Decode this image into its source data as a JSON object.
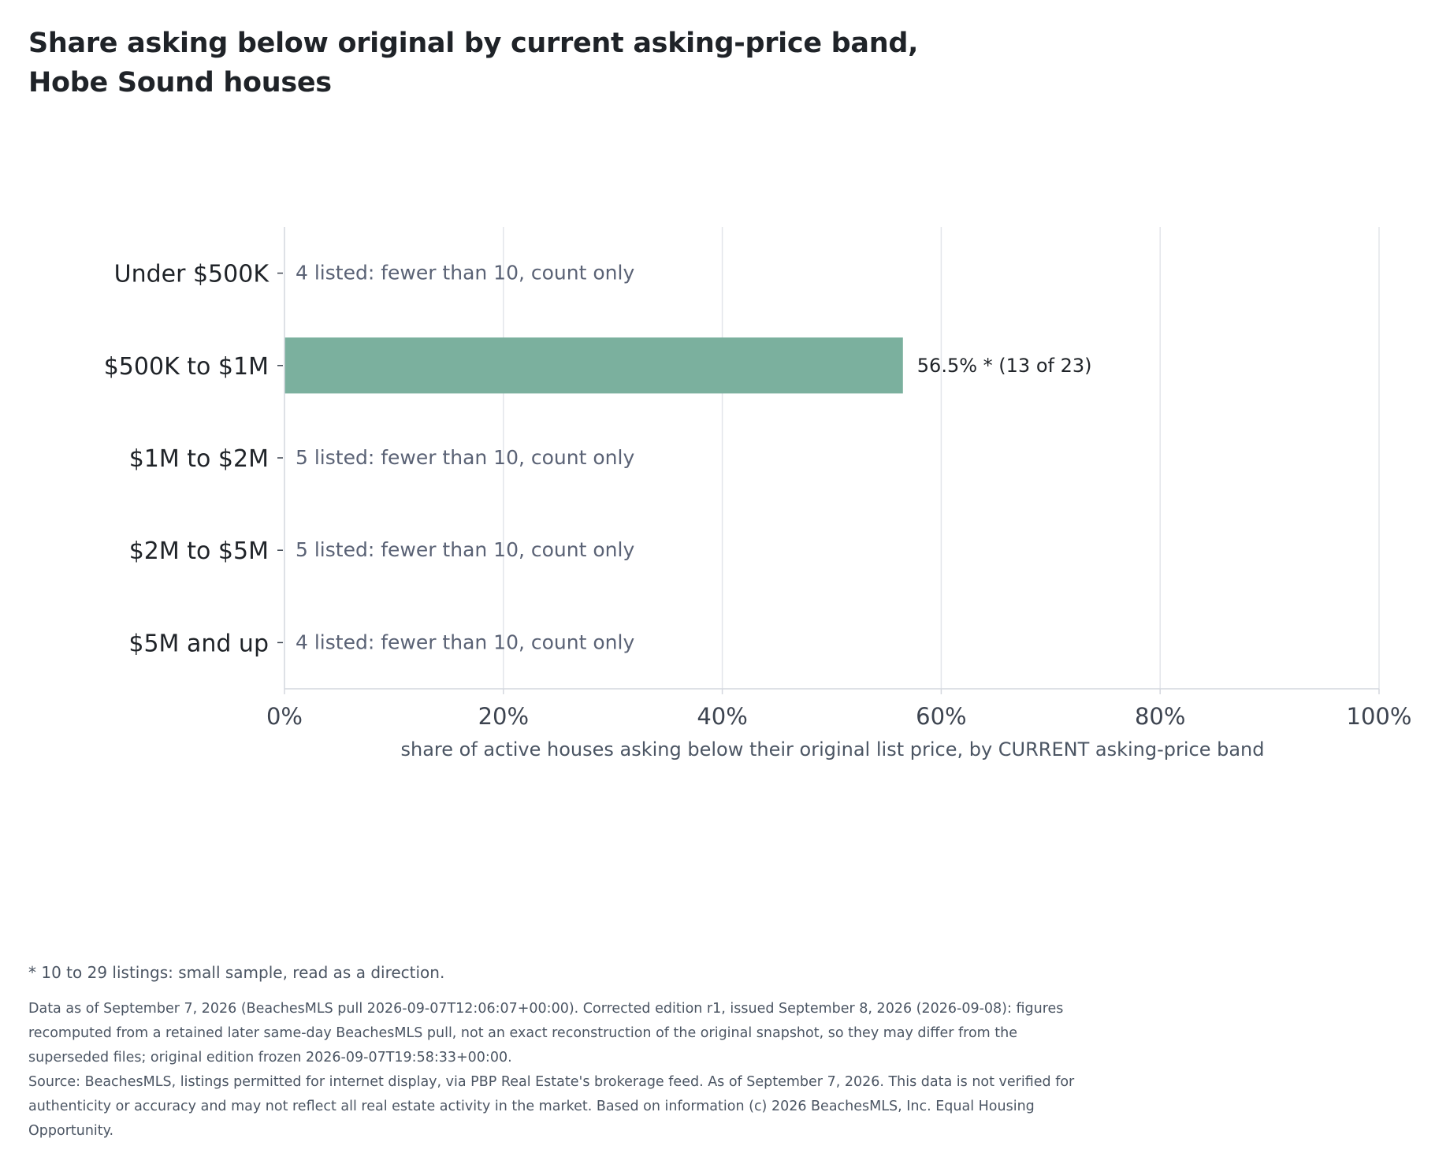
{
  "title": "Share asking below original by current asking-price band, Hobe Sound houses",
  "colors": {
    "bar": "#7bb09e",
    "gridline": "#e3e5ea",
    "axis": "#d4d7de",
    "band_label": "#1f2328",
    "note_text": "#5a6275",
    "value_label": "#1f2328"
  },
  "chart_data": {
    "type": "bar",
    "orientation": "horizontal",
    "categories": [
      "Under $500K",
      "$500K to $1M",
      "$1M to $2M",
      "$2M to $5M",
      "$5M and up"
    ],
    "values": [
      null,
      56.5,
      null,
      null,
      null
    ],
    "bar_labels": [
      "",
      "56.5% *  (13 of 23)",
      "",
      "",
      ""
    ],
    "notes": [
      "4 listed: fewer than 10, count only",
      "",
      "5 listed: fewer than 10, count only",
      "5 listed: fewer than 10, count only",
      "4 listed: fewer than 10, count only"
    ],
    "xlabel": "share of active houses asking below their original list price, by CURRENT asking-price band",
    "ylabel": "",
    "xlim": [
      0,
      100
    ],
    "xticks": [
      0,
      20,
      40,
      60,
      80,
      100
    ],
    "xtick_labels": [
      "0%",
      "20%",
      "40%",
      "60%",
      "80%",
      "100%"
    ],
    "grid": "vertical"
  },
  "footnote": "* 10 to 29 listings: small sample, read as a direction.",
  "data_note": "Data as of September 7, 2026 (BeachesMLS pull 2026-09-07T12:06:07+00:00). Corrected edition r1, issued September 8, 2026 (2026-09-08): figures recomputed from a retained later same-day BeachesMLS pull, not an exact reconstruction of the original snapshot, so they may differ from the superseded files; original edition frozen 2026-09-07T19:58:33+00:00.",
  "source": "Source: BeachesMLS, listings permitted for internet display, via PBP Real Estate's brokerage feed. As of September 7, 2026. This data is not verified for authenticity or accuracy and may not reflect all real estate activity in the market. Based on information (c) 2026 BeachesMLS, Inc. Equal Housing Opportunity."
}
